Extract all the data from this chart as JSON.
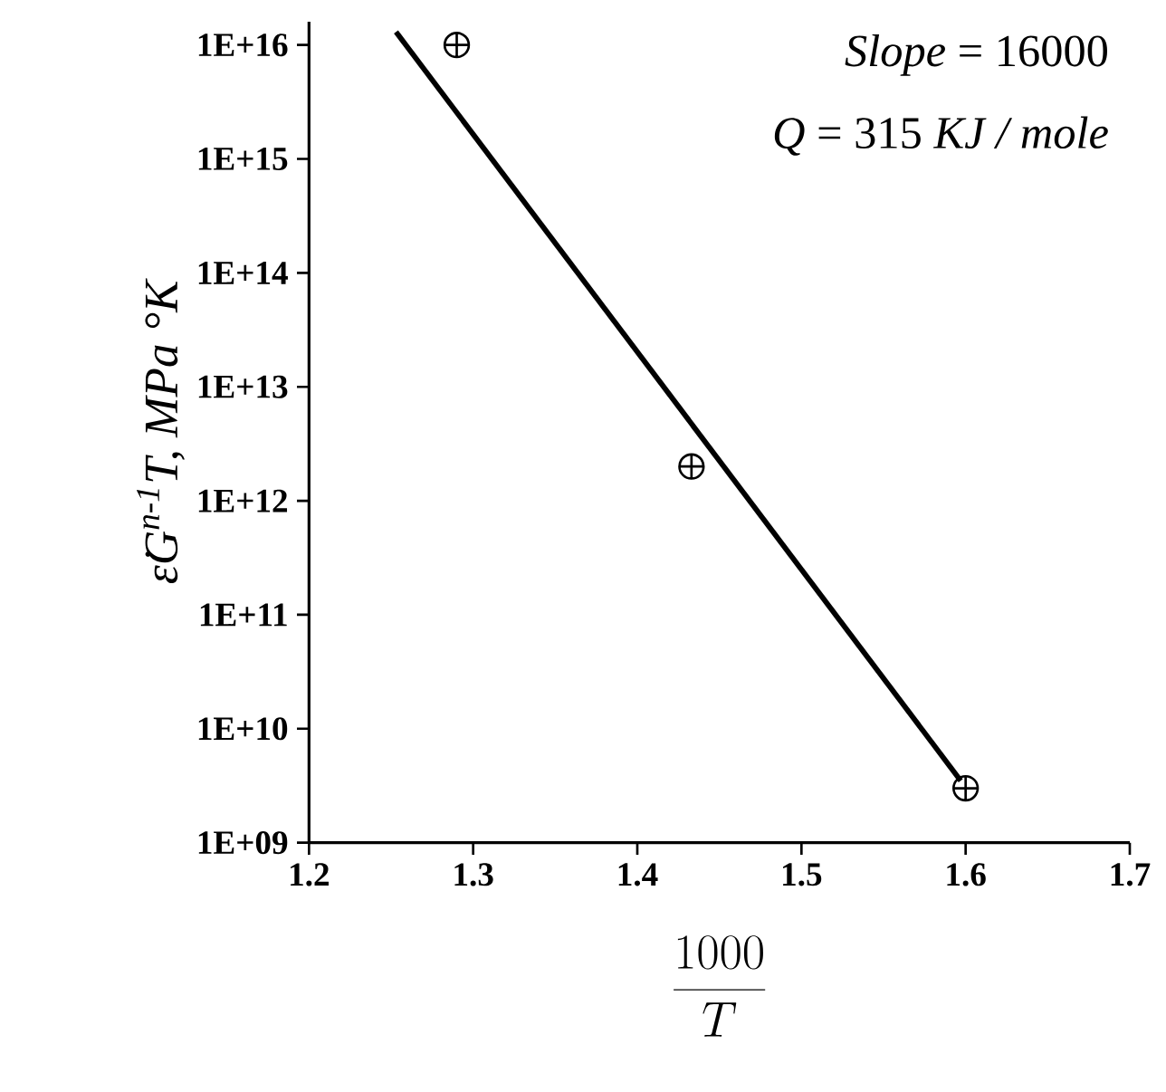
{
  "chart_data": {
    "type": "scatter",
    "xlabel": "\\frac{1000}{T}",
    "ylabel": "ε̇G$^{n-1}$T, MPa °K",
    "log": "y",
    "xlim": [
      1.2,
      1.7
    ],
    "xticks": [
      1.2,
      1.3,
      1.4,
      1.5,
      1.6,
      1.7
    ],
    "ylim": [
      1000000000.0,
      1.6e+16
    ],
    "yticks": [
      {
        "value": 1000000000.0,
        "label": "1E+09"
      },
      {
        "value": 10000000000.0,
        "label": "1E+10"
      },
      {
        "value": 100000000000.0,
        "label": "1E+11"
      },
      {
        "value": 1000000000000.0,
        "label": "1E+12"
      },
      {
        "value": 10000000000000.0,
        "label": "1E+13"
      },
      {
        "value": 100000000000000.0,
        "label": "1E+14"
      },
      {
        "value": 1000000000000000.0,
        "label": "1E+15"
      },
      {
        "value": 1e+16,
        "label": "1E+16"
      }
    ],
    "grid": false,
    "series": [
      {
        "color": "#000000",
        "marker": "cross",
        "x": [
          1.29,
          1.433,
          1.6
        ],
        "values": [
          1e+16,
          2000000000000.0,
          3000000000.0
        ]
      },
      {
        "type": "line",
        "color": "#000000",
        "marker": "none",
        "line_style": "solid",
        "x": [
          1.253,
          1.597
        ],
        "values": [
          1.3e+16,
          3500000000.0
        ]
      }
    ],
    "annotations": [
      "*Slope* = 16000",
      "*Q* = 315 *KJ / mole*"
    ]
  }
}
